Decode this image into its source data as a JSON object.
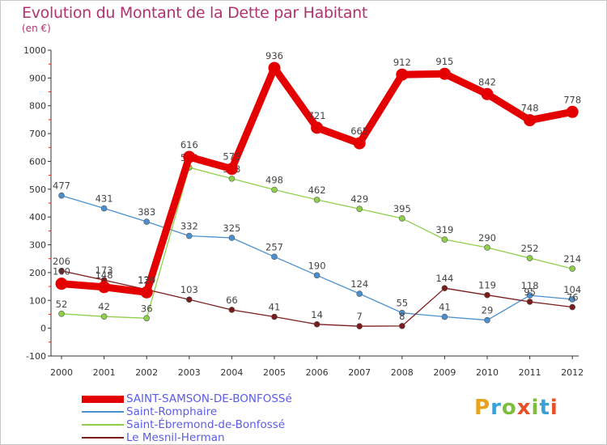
{
  "title": "Evolution du Montant de la Dette par Habitant",
  "unit": "(en €)",
  "logo": {
    "text": "Proxiti",
    "letter_colors": [
      "#e8a21c",
      "#3aa0d8",
      "#7dbf3c",
      "#e8502a",
      "#7dbf3c",
      "#3aa0d8",
      "#e8502a"
    ]
  },
  "chart_data": {
    "type": "line",
    "title": "Evolution du Montant de la Dette par Habitant",
    "ylabel": "(en €)",
    "x": [
      "2000",
      "2001",
      "2002",
      "2003",
      "2004",
      "2005",
      "2006",
      "2007",
      "2008",
      "2009",
      "2010",
      "2011",
      "2012"
    ],
    "ylim": [
      -100,
      1000
    ],
    "yticks": [
      -100,
      0,
      100,
      200,
      300,
      400,
      500,
      600,
      700,
      800,
      900,
      1000
    ],
    "grid": false,
    "legend_position": "bottom-left",
    "series": [
      {
        "name": "SAINT-SAMSON-DE-BONFOSSé",
        "color": "#e40000",
        "emphasis": true,
        "values": [
          160,
          148,
          129,
          616,
          573,
          936,
          721,
          665,
          912,
          915,
          842,
          748,
          778
        ]
      },
      {
        "name": "Saint-Romphaire",
        "color": "#4a90d0",
        "emphasis": false,
        "values": [
          477,
          431,
          383,
          332,
          325,
          257,
          190,
          124,
          55,
          41,
          29,
          118,
          104
        ]
      },
      {
        "name": "Saint-Ébremond-de-Bonfossé",
        "color": "#8fd04a",
        "emphasis": false,
        "values": [
          52,
          42,
          36,
          578,
          538,
          498,
          462,
          429,
          395,
          319,
          290,
          252,
          214
        ]
      },
      {
        "name": "Le Mesnil-Herman",
        "color": "#7a1c1c",
        "emphasis": false,
        "values": [
          206,
          173,
          139,
          103,
          66,
          41,
          14,
          7,
          8,
          144,
          119,
          95,
          76
        ]
      }
    ]
  }
}
